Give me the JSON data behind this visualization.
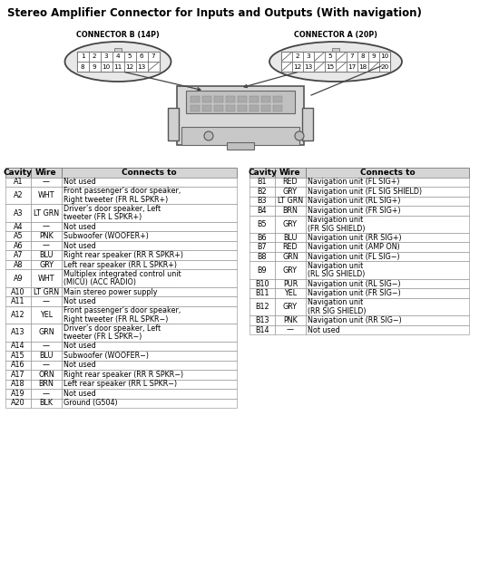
{
  "title": "Stereo Amplifier Connector for Inputs and Outputs (With navigation)",
  "connector_b_label": "CONNECTOR B (14P)",
  "connector_a_label": "CONNECTOR A (20P)",
  "conn_b_rows": [
    [
      1,
      2,
      3,
      4,
      5,
      6,
      7
    ],
    [
      8,
      9,
      10,
      11,
      12,
      13,
      null
    ]
  ],
  "conn_a_rows": [
    [
      null,
      2,
      3,
      null,
      5,
      null,
      7,
      8,
      9,
      10
    ],
    [
      null,
      12,
      13,
      null,
      15,
      null,
      17,
      18,
      null,
      20
    ]
  ],
  "table_a_headers": [
    "Cavity",
    "Wire",
    "Connects to"
  ],
  "table_b_headers": [
    "Cavity",
    "Wire",
    "Connects to"
  ],
  "table_a": [
    [
      "A1",
      "—",
      "Not used"
    ],
    [
      "A2",
      "WHT",
      "Front passenger’s door speaker,\nRight tweeter (FR RL SPKR+)"
    ],
    [
      "A3",
      "LT GRN",
      "Driver’s door speaker, Left\ntweeter (FR L SPKR+)"
    ],
    [
      "A4",
      "—",
      "Not used"
    ],
    [
      "A5",
      "PNK",
      "Subwoofer (WOOFER+)"
    ],
    [
      "A6",
      "—",
      "Not used"
    ],
    [
      "A7",
      "BLU",
      "Right rear speaker (RR R SPKR+)"
    ],
    [
      "A8",
      "GRY",
      "Left rear speaker (RR L SPKR+)"
    ],
    [
      "A9",
      "WHT",
      "Multiplex integrated control unit\n(MICU) (ACC RADIO)"
    ],
    [
      "A10",
      "LT GRN",
      "Main stereo power supply"
    ],
    [
      "A11",
      "—",
      "Not used"
    ],
    [
      "A12",
      "YEL",
      "Front passenger’s door speaker,\nRight tweeter (FR RL SPKR−)"
    ],
    [
      "A13",
      "GRN",
      "Driver’s door speaker, Left\ntweeter (FR L SPKR−)"
    ],
    [
      "A14",
      "—",
      "Not used"
    ],
    [
      "A15",
      "BLU",
      "Subwoofer (WOOFER−)"
    ],
    [
      "A16",
      "—",
      "Not used"
    ],
    [
      "A17",
      "ORN",
      "Right rear speaker (RR R SPKR−)"
    ],
    [
      "A18",
      "BRN",
      "Left rear speaker (RR L SPKR−)"
    ],
    [
      "A19",
      "—",
      "Not used"
    ],
    [
      "A20",
      "BLK",
      "Ground (G504)"
    ]
  ],
  "table_b": [
    [
      "B1",
      "RED",
      "Navigation unit (FL SIG+)"
    ],
    [
      "B2",
      "GRY",
      "Navigation unit (FL SIG SHIELD)"
    ],
    [
      "B3",
      "LT GRN",
      "Navigation unit (RL SIG+)"
    ],
    [
      "B4",
      "BRN",
      "Navigation unit (FR SIG+)"
    ],
    [
      "B5",
      "GRY",
      "Navigation unit\n(FR SIG SHIELD)"
    ],
    [
      "B6",
      "BLU",
      "Navigation unit (RR SIG+)"
    ],
    [
      "B7",
      "RED",
      "Navigation unit (AMP ON)"
    ],
    [
      "B8",
      "GRN",
      "Navigation unit (FL SIG−)"
    ],
    [
      "B9",
      "GRY",
      "Navigation unit\n(RL SIG SHIELD)"
    ],
    [
      "B10",
      "PUR",
      "Navigation unit (RL SIG−)"
    ],
    [
      "B11",
      "YEL",
      "Navigation unit (FR SIG−)"
    ],
    [
      "B12",
      "GRY",
      "Navigation unit\n(RR SIG SHIELD)"
    ],
    [
      "B13",
      "PNK",
      "Navigation unit (RR SIG−)"
    ],
    [
      "B14",
      "—",
      "Not used"
    ]
  ],
  "bg_color": "#ffffff",
  "border_color": "#888888",
  "title_fontsize": 8.5,
  "table_fontsize": 5.8,
  "header_fontsize": 6.5
}
